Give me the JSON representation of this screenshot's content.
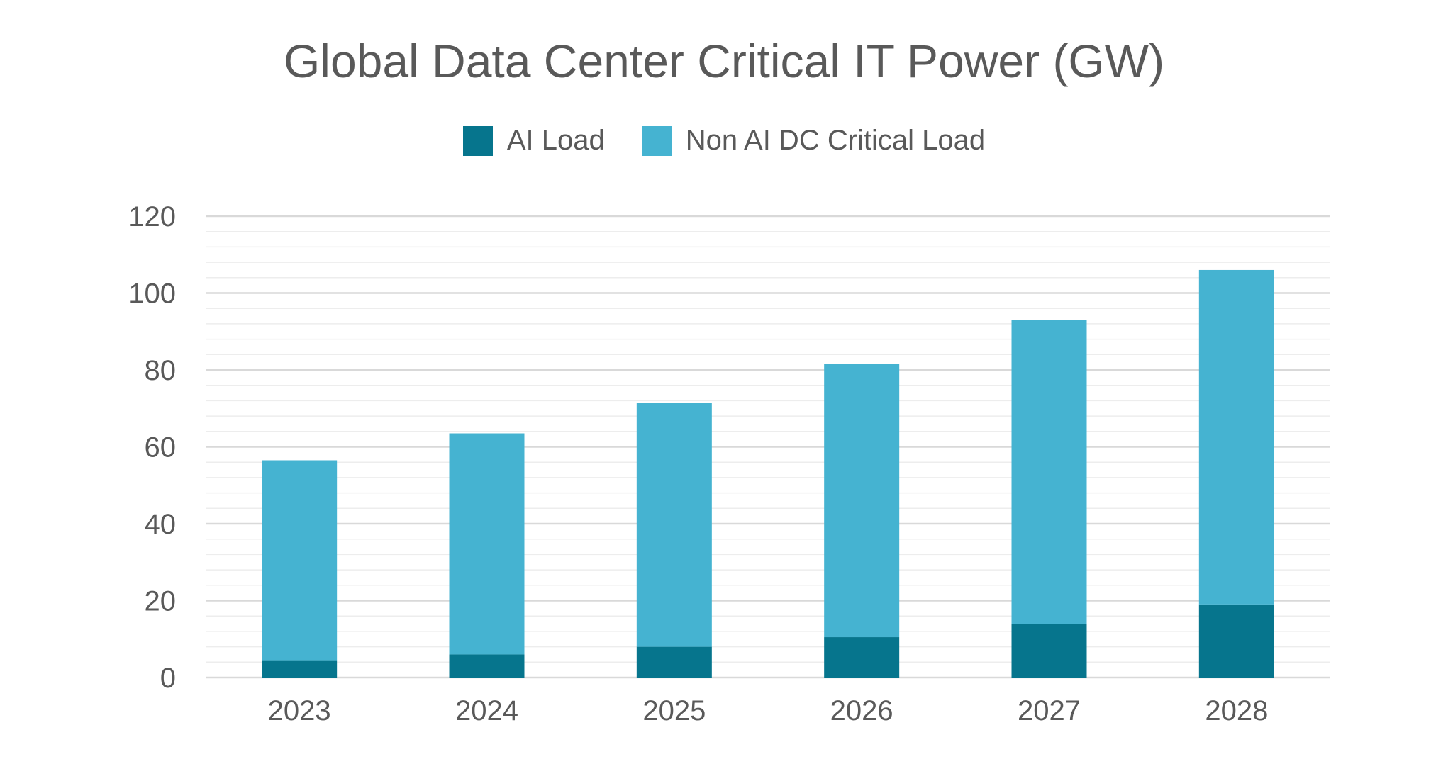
{
  "chart_data": {
    "type": "bar",
    "stacked": true,
    "title": "Global Data Center Critical IT Power (GW)",
    "xlabel": "",
    "ylabel": "",
    "categories": [
      "2023",
      "2024",
      "2025",
      "2026",
      "2027",
      "2028"
    ],
    "series": [
      {
        "name": "AI Load",
        "color": "#06758D",
        "values": [
          4.5,
          6,
          8,
          10.5,
          14,
          19
        ]
      },
      {
        "name": "Non AI DC Critical Load",
        "color": "#45B3D1",
        "values": [
          52,
          57.5,
          63.5,
          71,
          79,
          87
        ]
      }
    ],
    "ylim": [
      0,
      120
    ],
    "yticks": [
      0,
      20,
      40,
      60,
      80,
      100,
      120
    ],
    "grid": true,
    "legend_position": "top"
  }
}
